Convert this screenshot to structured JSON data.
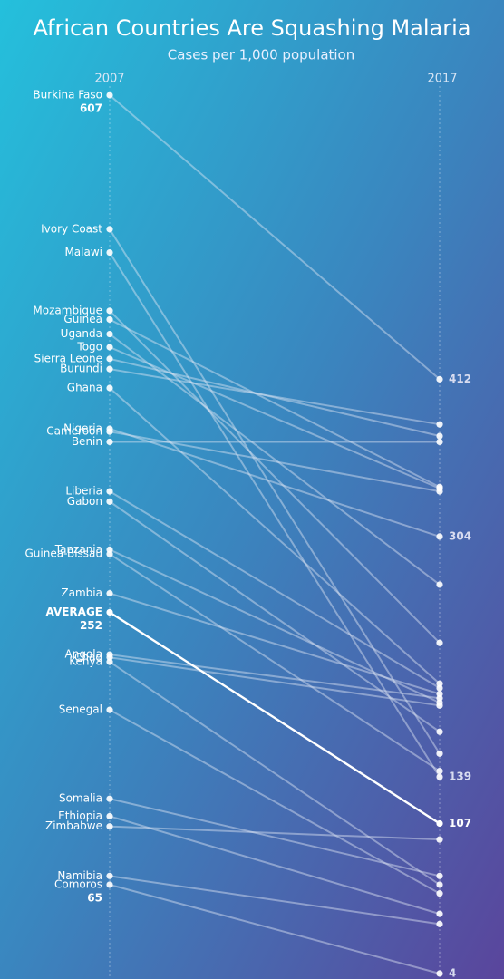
{
  "chart_data": {
    "type": "slope",
    "title": "African Countries Are Squashing Malaria",
    "subtitle": "Cases per 1,000 population",
    "categories": [
      "2007",
      "2017"
    ],
    "line_color": "#dfe6f5",
    "series": [
      {
        "name": "Burkina Faso",
        "values": [
          607,
          412
        ],
        "show_labels": [
          true,
          true
        ]
      },
      {
        "name": "Ivory Coast",
        "values": [
          515,
          155
        ],
        "show_labels": [
          false,
          false
        ]
      },
      {
        "name": "Malawi",
        "values": [
          499,
          139
        ],
        "show_labels": [
          false,
          true
        ]
      },
      {
        "name": "Mozambique",
        "values": [
          459,
          231
        ],
        "show_labels": [
          false,
          false
        ]
      },
      {
        "name": "Guinea",
        "values": [
          453,
          338
        ],
        "show_labels": [
          false,
          false
        ]
      },
      {
        "name": "Uganda",
        "values": [
          443,
          271
        ],
        "show_labels": [
          false,
          false
        ]
      },
      {
        "name": "Togo",
        "values": [
          434,
          337
        ],
        "show_labels": [
          false,
          false
        ]
      },
      {
        "name": "Sierra Leone",
        "values": [
          426,
          373
        ],
        "show_labels": [
          false,
          false
        ]
      },
      {
        "name": "Burundi",
        "values": [
          419,
          381
        ],
        "show_labels": [
          false,
          false
        ]
      },
      {
        "name": "Ghana",
        "values": [
          406,
          203
        ],
        "show_labels": [
          false,
          false
        ]
      },
      {
        "name": "Nigeria",
        "values": [
          378,
          304
        ],
        "show_labels": [
          false,
          true
        ]
      },
      {
        "name": "Cameroon",
        "values": [
          376,
          335
        ],
        "show_labels": [
          false,
          false
        ]
      },
      {
        "name": "Benin",
        "values": [
          369,
          369
        ],
        "show_labels": [
          false,
          false
        ]
      },
      {
        "name": "Liberia",
        "values": [
          335,
          200
        ],
        "show_labels": [
          false,
          false
        ]
      },
      {
        "name": "Gabon",
        "values": [
          328,
          170
        ],
        "show_labels": [
          false,
          false
        ]
      },
      {
        "name": "Tanzania",
        "values": [
          295,
          190
        ],
        "show_labels": [
          false,
          false
        ]
      },
      {
        "name": "Guinea-Bissau",
        "values": [
          292,
          143
        ],
        "show_labels": [
          false,
          false
        ]
      },
      {
        "name": "Zambia",
        "values": [
          265,
          196
        ],
        "show_labels": [
          false,
          false
        ]
      },
      {
        "name": "AVERAGE",
        "values": [
          252,
          107
        ],
        "show_labels": [
          true,
          true
        ],
        "color": "#ffffff",
        "highlight": true
      },
      {
        "name": "Angola",
        "values": [
          223,
          193
        ],
        "show_labels": [
          false,
          false
        ]
      },
      {
        "name": "Chad",
        "values": [
          221,
          188
        ],
        "show_labels": [
          false,
          false
        ]
      },
      {
        "name": "Kenya",
        "values": [
          218,
          65
        ],
        "show_labels": [
          false,
          false
        ]
      },
      {
        "name": "Senegal",
        "values": [
          185,
          59
        ],
        "show_labels": [
          false,
          false
        ]
      },
      {
        "name": "Somalia",
        "values": [
          124,
          71
        ],
        "show_labels": [
          false,
          false
        ]
      },
      {
        "name": "Ethiopia",
        "values": [
          112,
          45
        ],
        "show_labels": [
          false,
          false
        ]
      },
      {
        "name": "Zimbabwe",
        "values": [
          105,
          96
        ],
        "show_labels": [
          false,
          false
        ]
      },
      {
        "name": "Namibia",
        "values": [
          71,
          38
        ],
        "show_labels": [
          false,
          false
        ]
      },
      {
        "name": "Comoros",
        "values": [
          65,
          4
        ],
        "show_labels": [
          true,
          true
        ]
      }
    ]
  }
}
